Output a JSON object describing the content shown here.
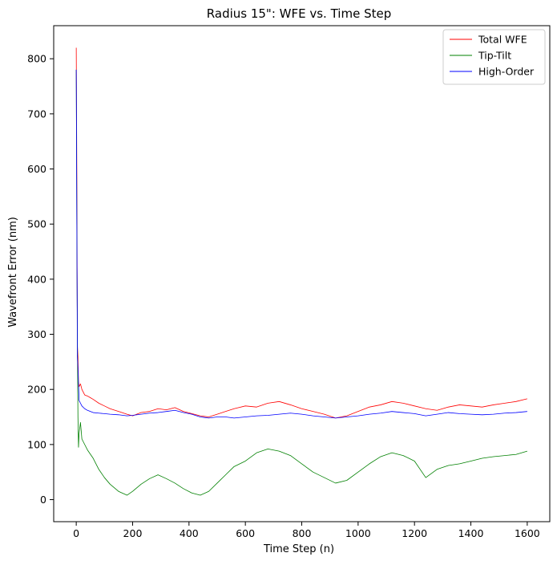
{
  "chart_data": {
    "type": "line",
    "title": "Radius 15\": WFE vs. Time Step",
    "xlabel": "Time Step (n)",
    "ylabel": "Wavefront Error (nm)",
    "xlim": [
      -80,
      1680
    ],
    "ylim": [
      -40,
      860
    ],
    "xticks": [
      0,
      200,
      400,
      600,
      800,
      1000,
      1200,
      1400,
      1600
    ],
    "yticks": [
      0,
      100,
      200,
      300,
      400,
      500,
      600,
      700,
      800
    ],
    "grid": false,
    "legend_position": "top-right",
    "series": [
      {
        "name": "Total WFE",
        "color": "#ff0000",
        "x": [
          0,
          2,
          4,
          6,
          8,
          10,
          15,
          20,
          30,
          40,
          50,
          60,
          80,
          100,
          120,
          150,
          180,
          200,
          230,
          260,
          290,
          320,
          350,
          380,
          410,
          440,
          470,
          500,
          530,
          560,
          600,
          640,
          680,
          720,
          760,
          800,
          840,
          880,
          920,
          960,
          1000,
          1040,
          1080,
          1120,
          1160,
          1200,
          1240,
          1280,
          1320,
          1360,
          1400,
          1440,
          1480,
          1520,
          1560,
          1600
        ],
        "y": [
          820,
          600,
          280,
          260,
          215,
          205,
          210,
          200,
          190,
          188,
          185,
          182,
          175,
          170,
          165,
          160,
          155,
          152,
          158,
          160,
          165,
          163,
          167,
          160,
          156,
          152,
          150,
          155,
          160,
          165,
          170,
          168,
          175,
          178,
          172,
          165,
          160,
          155,
          148,
          152,
          160,
          168,
          172,
          178,
          175,
          170,
          165,
          162,
          168,
          172,
          170,
          168,
          172,
          175,
          178,
          183
        ]
      },
      {
        "name": "Tip-Tilt",
        "color": "#008000",
        "x": [
          0,
          2,
          4,
          6,
          8,
          10,
          15,
          20,
          30,
          40,
          60,
          80,
          100,
          120,
          150,
          180,
          200,
          230,
          260,
          290,
          320,
          350,
          380,
          410,
          440,
          470,
          500,
          530,
          560,
          600,
          640,
          680,
          720,
          760,
          800,
          840,
          880,
          920,
          960,
          1000,
          1040,
          1080,
          1120,
          1160,
          1200,
          1240,
          1280,
          1320,
          1360,
          1400,
          1440,
          1480,
          1520,
          1560,
          1600
        ],
        "y": [
          780,
          500,
          300,
          150,
          95,
          120,
          140,
          110,
          100,
          90,
          75,
          55,
          40,
          28,
          15,
          8,
          15,
          28,
          38,
          45,
          38,
          30,
          20,
          12,
          8,
          15,
          30,
          45,
          60,
          70,
          85,
          92,
          88,
          80,
          65,
          50,
          40,
          30,
          35,
          50,
          65,
          78,
          85,
          80,
          70,
          40,
          55,
          62,
          65,
          70,
          75,
          78,
          80,
          82,
          88
        ]
      },
      {
        "name": "High-Order",
        "color": "#0000ff",
        "x": [
          0,
          2,
          4,
          6,
          8,
          10,
          15,
          20,
          30,
          40,
          50,
          60,
          80,
          100,
          120,
          150,
          180,
          200,
          230,
          260,
          290,
          320,
          350,
          380,
          410,
          440,
          470,
          500,
          530,
          560,
          600,
          640,
          680,
          720,
          760,
          800,
          840,
          880,
          920,
          960,
          1000,
          1040,
          1080,
          1120,
          1160,
          1200,
          1240,
          1280,
          1320,
          1360,
          1400,
          1440,
          1480,
          1520,
          1560,
          1600
        ],
        "y": [
          780,
          520,
          260,
          240,
          212,
          180,
          175,
          170,
          165,
          162,
          160,
          158,
          157,
          156,
          155,
          154,
          152,
          153,
          155,
          157,
          158,
          160,
          162,
          158,
          155,
          150,
          148,
          150,
          150,
          148,
          150,
          152,
          153,
          155,
          157,
          155,
          152,
          150,
          148,
          150,
          152,
          155,
          157,
          160,
          158,
          156,
          152,
          155,
          158,
          156,
          155,
          154,
          155,
          157,
          158,
          160
        ]
      }
    ]
  }
}
